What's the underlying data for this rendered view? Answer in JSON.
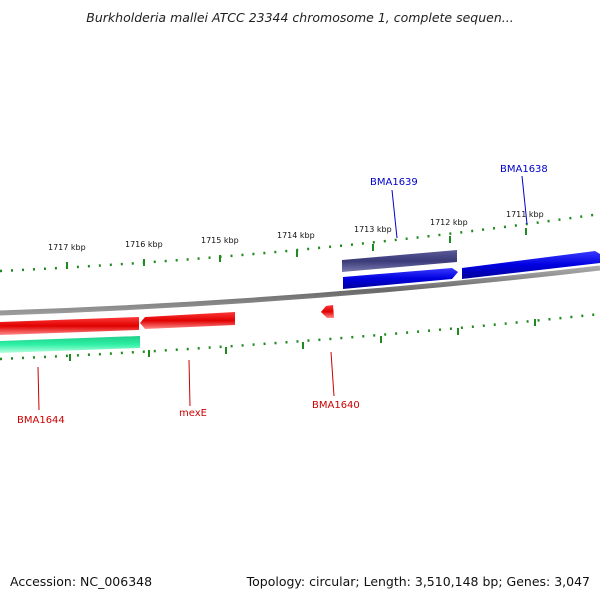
{
  "title": "Burkholderia mallei ATCC 23344 chromosome 1, complete sequen...",
  "footer": {
    "accession": "Accession: NC_006348",
    "summary": "Topology: circular; Length: 3,510,148 bp; Genes: 3,047"
  },
  "ruler": {
    "kbp_labels": [
      "1717 kbp",
      "1716 kbp",
      "1715 kbp",
      "1714 kbp",
      "1713 kbp",
      "1712 kbp",
      "1711 kbp"
    ]
  },
  "genes": {
    "plus_strand": [
      {
        "name": "BMA1639",
        "color": "#0000cc"
      },
      {
        "name": "BMA1638",
        "color": "#0000cc"
      }
    ],
    "minus_strand": [
      {
        "name": "BMA1644",
        "color": "#cc0000"
      },
      {
        "name": "mexE",
        "color": "#cc0000"
      },
      {
        "name": "BMA1640",
        "color": "#cc0000"
      }
    ]
  },
  "colors": {
    "backbone": "#808080",
    "tick": "#1f8a1f",
    "cds_plus": "#0000ee",
    "cds_minus": "#ee0000",
    "cog_plus": "#4b4b8c",
    "cog_minus": "#2ee8a0"
  }
}
